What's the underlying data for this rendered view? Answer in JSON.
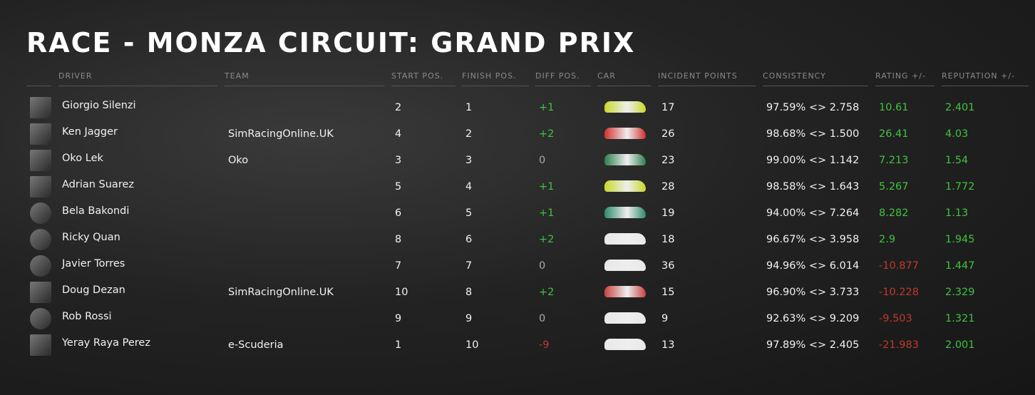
{
  "title": "RACE - MONZA CIRCUIT: GRAND PRIX",
  "columns": [
    "DRIVER",
    "TEAM",
    "START POS.",
    "FINISH POS.",
    "DIFF POS.",
    "CAR",
    "INCIDENT POINTS",
    "CONSISTENCY",
    "RATING +/-",
    "REPUTATION +/-"
  ],
  "rows": [
    {
      "driver": "Giorgio Silenzi",
      "start": "2",
      "finish": "1",
      "diff": "+1",
      "incidents": "17",
      "consistency": "97.59% <> 2.758",
      "rating": "10.61",
      "reputation": "2.401"
    },
    {
      "driver": "Ken Jagger",
      "team": "SimRacingOnline.UK",
      "start": "4",
      "finish": "2",
      "diff": "+2",
      "incidents": "26",
      "consistency": "98.68% <> 1.500",
      "rating": "26.41",
      "reputation": "4.03"
    },
    {
      "driver": "Oko Lek",
      "team": "Oko",
      "start": "3",
      "finish": "3",
      "diff": "0",
      "incidents": "23",
      "consistency": "99.00% <> 1.142",
      "rating": "7.213",
      "reputation": "1.54"
    },
    {
      "driver": "Adrian Suarez",
      "start": "5",
      "finish": "4",
      "diff": "+1",
      "incidents": "28",
      "consistency": "98.58% <> 1.643",
      "rating": "5.267",
      "reputation": "1.772"
    },
    {
      "driver": "Bela Bakondi",
      "start": "6",
      "finish": "5",
      "diff": "+1",
      "incidents": "19",
      "consistency": "94.00% <> 7.264",
      "rating": "8.282",
      "reputation": "1.13"
    },
    {
      "driver": "Ricky Quan",
      "start": "8",
      "finish": "6",
      "diff": "+2",
      "incidents": "18",
      "consistency": "96.67% <> 3.958",
      "rating": "2.9",
      "reputation": "1.945"
    },
    {
      "driver": "Javier Torres",
      "start": "7",
      "finish": "7",
      "diff": "0",
      "incidents": "36",
      "consistency": "94.96% <> 6.014",
      "rating": "-10.877",
      "reputation": "1.447"
    },
    {
      "driver": "Doug Dezan",
      "team": "SimRacingOnline.UK",
      "start": "10",
      "finish": "8",
      "diff": "+2",
      "incidents": "15",
      "consistency": "96.90% <> 3.733",
      "rating": "-10.228",
      "reputation": "2.329"
    },
    {
      "driver": "Rob Rossi",
      "start": "9",
      "finish": "9",
      "diff": "0",
      "incidents": "9",
      "consistency": "92.63% <> 9.209",
      "rating": "-9.503",
      "reputation": "1.321"
    },
    {
      "driver": "Yeray Raya Perez",
      "team": "e-Scuderia",
      "start": "1",
      "finish": "10",
      "diff": "-9",
      "incidents": "13",
      "consistency": "97.89% <> 2.405",
      "rating": "-21.983",
      "reputation": "2.001"
    }
  ]
}
